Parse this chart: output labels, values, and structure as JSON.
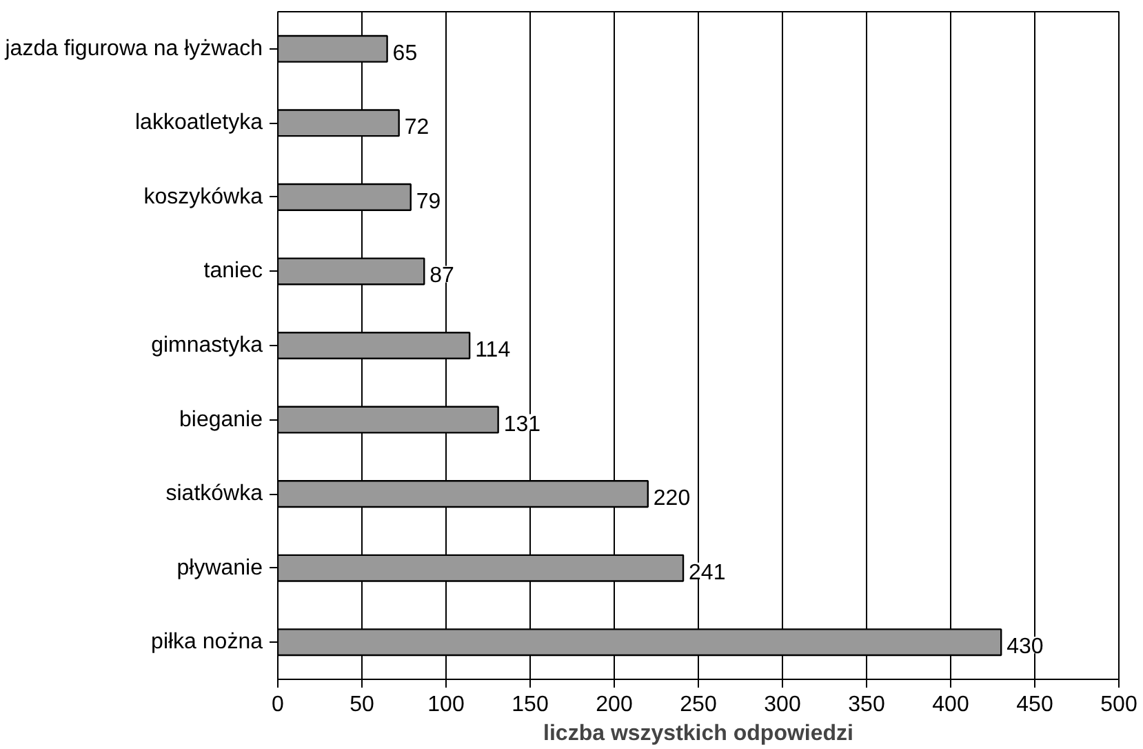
{
  "chart_data": {
    "type": "bar",
    "orientation": "horizontal",
    "xlabel": "liczba wszystkich odpowiedzi",
    "categories": [
      "jazda figurowa na łyżwach",
      "lakkoatletyka",
      "koszykówka",
      "taniec",
      "gimnastyka",
      "bieganie",
      "siatkówka",
      "pływanie",
      "piłka nożna"
    ],
    "values": [
      65,
      72,
      79,
      87,
      114,
      131,
      220,
      241,
      430
    ],
    "color": "#999999",
    "xlim": [
      0,
      500
    ],
    "xticks": [
      0,
      50,
      100,
      150,
      200,
      250,
      300,
      350,
      400,
      450,
      500
    ],
    "grid": "x",
    "data_labels": true
  }
}
